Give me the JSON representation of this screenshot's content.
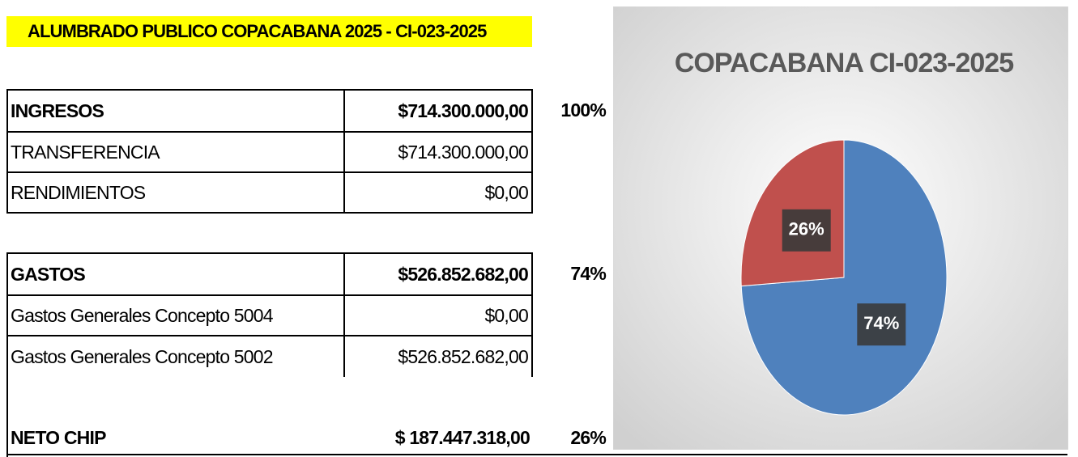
{
  "header": {
    "title": "ALUMBRADO PUBLICO COPACABANA 2025 - CI-023-2025"
  },
  "table": {
    "rows": [
      {
        "label": "INGRESOS",
        "amount": "$714.300.000,00",
        "percent": "100%"
      },
      {
        "label": "TRANSFERENCIA",
        "amount": "$714.300.000,00"
      },
      {
        "label": "RENDIMIENTOS",
        "amount": "$0,00"
      },
      {
        "label": "GASTOS",
        "amount": "$526.852.682,00",
        "percent": "74%"
      },
      {
        "label": "Gastos Generales Concepto 5004",
        "amount": "$0,00"
      },
      {
        "label": "Gastos Generales Concepto 5002",
        "amount": "$526.852.682,00"
      },
      {
        "label": "NETO CHIP",
        "amount": "$ 187.447.318,00",
        "percent": "26%"
      }
    ]
  },
  "chart_data": {
    "type": "pie",
    "title": "COPACABANA CI-023-2025",
    "values": [
      74,
      26
    ],
    "value_labels": [
      "74%",
      "26%"
    ],
    "colors": [
      "#4f81bd",
      "#c0504d"
    ]
  }
}
